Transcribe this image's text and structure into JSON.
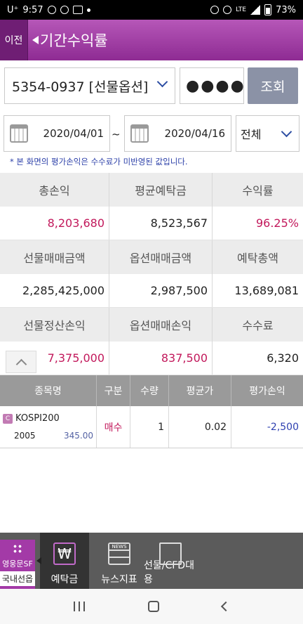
{
  "status": {
    "carrier": "U⁺",
    "time": "9:57",
    "network": "LTE",
    "battery": "73%"
  },
  "header": {
    "back_label": "이전",
    "title": "기간수익률"
  },
  "account": {
    "number": "5354-0937 [선물옵션]",
    "password_mask": "●●●●",
    "query_label": "조회"
  },
  "dates": {
    "start": "2020/04/01",
    "separator": "~",
    "end": "2020/04/16",
    "type_value": "전체"
  },
  "notice": "* 본 화면의 평가손익은 수수료가 미반영된 값입니다.",
  "summary": {
    "total_pl_label": "총손익",
    "total_pl": "8,203,680",
    "avg_deposit_label": "평균예탁금",
    "avg_deposit": "8,523,567",
    "return_label": "수익률",
    "return_rate": "96.25%",
    "fut_trade_label": "선물매매금액",
    "fut_trade": "2,285,425,000",
    "opt_trade_label": "옵션매매금액",
    "opt_trade": "2,987,500",
    "deposit_total_label": "예탁총액",
    "deposit_total": "13,689,081",
    "fut_settle_label": "선물정산손익",
    "fut_settle": "7,375,000",
    "opt_pl_label": "옵션매매손익",
    "opt_pl": "837,500",
    "fee_label": "수수료",
    "fee": "6,320"
  },
  "holdings": {
    "columns": [
      "종목명",
      "구분",
      "수량",
      "평균가",
      "평가손익"
    ],
    "rows": [
      {
        "badge": "C",
        "name": "KOSPI200",
        "sub_code": "2005",
        "sub_price": "345.00",
        "side": "매수",
        "qty": "1",
        "avg_price": "0.02",
        "eval_pl": "-2,500"
      }
    ]
  },
  "bottom_nav": {
    "home_label": "영웅문SF",
    "domestic_label": "국내선옵",
    "deposit_label": "예탁금",
    "deposit_symbol": "₩",
    "news_label": "뉴스지표",
    "news_icon_text": "NEWS",
    "futures_label": "선물/CFD대용"
  }
}
